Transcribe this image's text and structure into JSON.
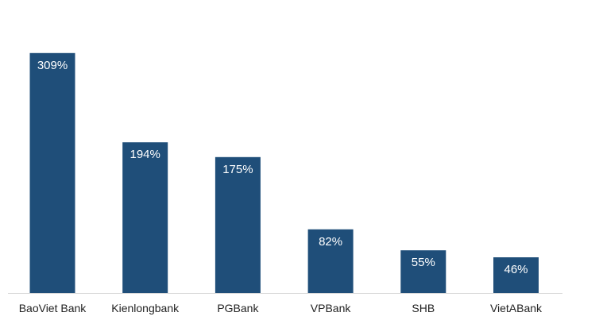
{
  "chart_data": {
    "type": "bar",
    "title": "",
    "xlabel": "",
    "ylabel": "",
    "categories": [
      "BaoViet Bank",
      "Kienlongbank",
      "PGBank",
      "VPBank",
      "SHB",
      "VietABank"
    ],
    "values": [
      309,
      194,
      175,
      82,
      55,
      46
    ],
    "data_labels": [
      "309%",
      "194%",
      "175%",
      "82%",
      "55%",
      "46%"
    ],
    "unit": "%",
    "ylim": [
      0,
      320
    ],
    "grid": false,
    "legend": "none",
    "bar_color": "#1f4e79",
    "axis_color": "#d9d9d9"
  }
}
